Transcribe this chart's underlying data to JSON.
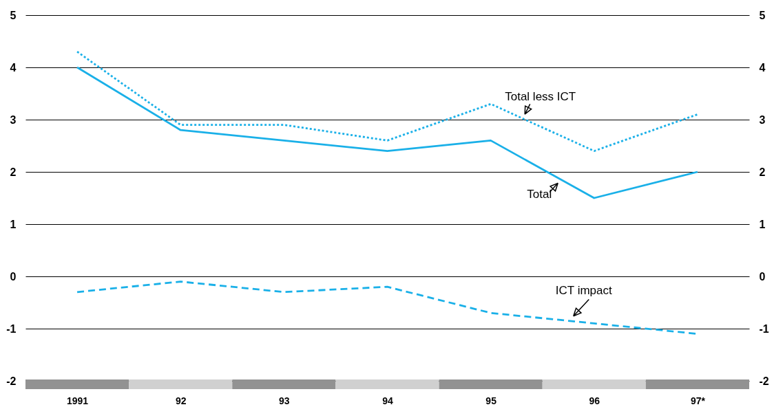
{
  "chart_data": {
    "type": "line",
    "categories": [
      "1991",
      "92",
      "93",
      "94",
      "95",
      "96",
      "97*"
    ],
    "series": [
      {
        "name": "Total",
        "color": "#1ab0e8",
        "line_style": "solid",
        "values": [
          4.0,
          2.8,
          2.6,
          2.4,
          2.6,
          1.5,
          2.0
        ]
      },
      {
        "name": "Total less ICT",
        "color": "#1ab0e8",
        "line_style": "dotted",
        "values": [
          4.3,
          2.9,
          2.9,
          2.6,
          3.3,
          2.4,
          3.1
        ]
      },
      {
        "name": "ICT impact",
        "color": "#1ab0e8",
        "line_style": "dashed",
        "values": [
          -0.3,
          -0.1,
          -0.3,
          -0.2,
          -0.7,
          -0.9,
          -1.1
        ]
      }
    ],
    "ylim": [
      -2,
      5
    ],
    "yticks": [
      -2,
      -1,
      0,
      1,
      2,
      3,
      4,
      5
    ],
    "y2lim": [
      -2,
      5
    ],
    "y2ticks": [
      -2,
      -1,
      0,
      1,
      2,
      3,
      4,
      5
    ],
    "grid": "y"
  }
}
